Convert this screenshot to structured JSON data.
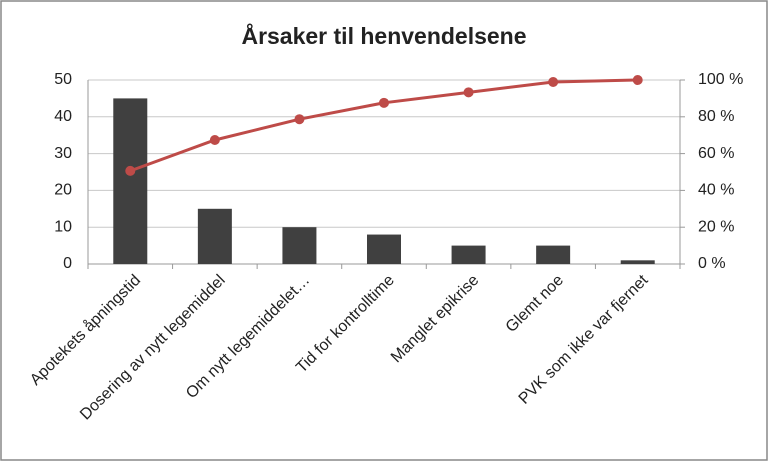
{
  "chart_data": {
    "type": "pareto",
    "title": "Årsaker til henvendelsene",
    "categories": [
      "Apotekets åpningstid",
      "Dosering av nytt legemiddel",
      "Om nytt legemiddelet…",
      "Tid for kontrolltime",
      "Manglet epikrise",
      "Glemt noe",
      "PVK som ikke var fjernet"
    ],
    "series": [
      {
        "type": "bar",
        "color": "#404040",
        "values": [
          45,
          15,
          10,
          8,
          5,
          5,
          1
        ]
      },
      {
        "type": "line",
        "axis": "y2",
        "color": "#be4b48",
        "values": [
          50.6,
          67.4,
          78.7,
          87.6,
          93.3,
          98.9,
          100
        ]
      }
    ],
    "ylim": [
      0,
      50
    ],
    "yticks": [
      0,
      10,
      20,
      30,
      40,
      50
    ],
    "y2lim": [
      0,
      100
    ],
    "y2ticks": [
      {
        "value": 0,
        "label": "0 %"
      },
      {
        "value": 20,
        "label": "20 %"
      },
      {
        "value": 40,
        "label": "40 %"
      },
      {
        "value": 60,
        "label": "60 %"
      },
      {
        "value": 80,
        "label": "80 %"
      },
      {
        "value": 100,
        "label": "100 %"
      }
    ],
    "grid": true
  }
}
